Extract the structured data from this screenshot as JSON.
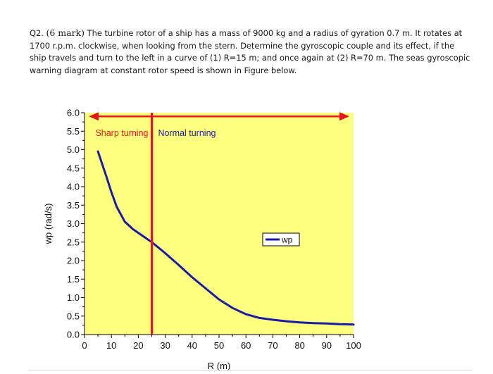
{
  "question": {
    "number": "Q2.",
    "marks": "(6 mark)",
    "text": "The turbine rotor of a ship has a mass of 9000 kg and a radius of gyration 0.7 m. It rotates at 1700 r.p.m. clockwise, when looking from the stern. Determine the gyroscopic couple and its effect, if the ship travels and turn to the left in a curve of (1) R=15 m; and once again at (2) R=70 m. The seas gyroscopic warning diagram at constant rotor speed is shown in Figure below."
  },
  "chart_data": {
    "type": "line",
    "title": "",
    "xlabel": "R (m)",
    "ylabel": "wp (rad/s)",
    "xlim": [
      0,
      100
    ],
    "ylim": [
      0,
      6
    ],
    "xticks": [
      "0",
      "10",
      "20",
      "30",
      "40",
      "50",
      "60",
      "70",
      "80",
      "90",
      "100"
    ],
    "yticks": [
      "0.0",
      "0.5",
      "1.0",
      "1.5",
      "2.0",
      "2.5",
      "3.0",
      "3.5",
      "4.0",
      "4.5",
      "5.0",
      "5.5",
      "6.0"
    ],
    "background_color": "#ffff80",
    "series": [
      {
        "name": "wp",
        "color": "#1a1aa6",
        "x": [
          5,
          8,
          10,
          12,
          15,
          18,
          20,
          22,
          25,
          28,
          30,
          35,
          40,
          45,
          50,
          55,
          60,
          65,
          70,
          75,
          80,
          85,
          90,
          95,
          100
        ],
        "y": [
          4.95,
          4.3,
          3.85,
          3.45,
          3.05,
          2.85,
          2.75,
          2.65,
          2.5,
          2.32,
          2.2,
          1.88,
          1.55,
          1.25,
          0.95,
          0.72,
          0.55,
          0.45,
          0.4,
          0.36,
          0.33,
          0.31,
          0.3,
          0.28,
          0.27
        ]
      }
    ],
    "annotations": {
      "divider_x": 25,
      "arrow_y": 5.9,
      "left_region_label": "Sharp turning",
      "right_region_label": "Normal turning",
      "accent_color": "#e8141c"
    },
    "legend": {
      "position": "middle-right"
    }
  }
}
